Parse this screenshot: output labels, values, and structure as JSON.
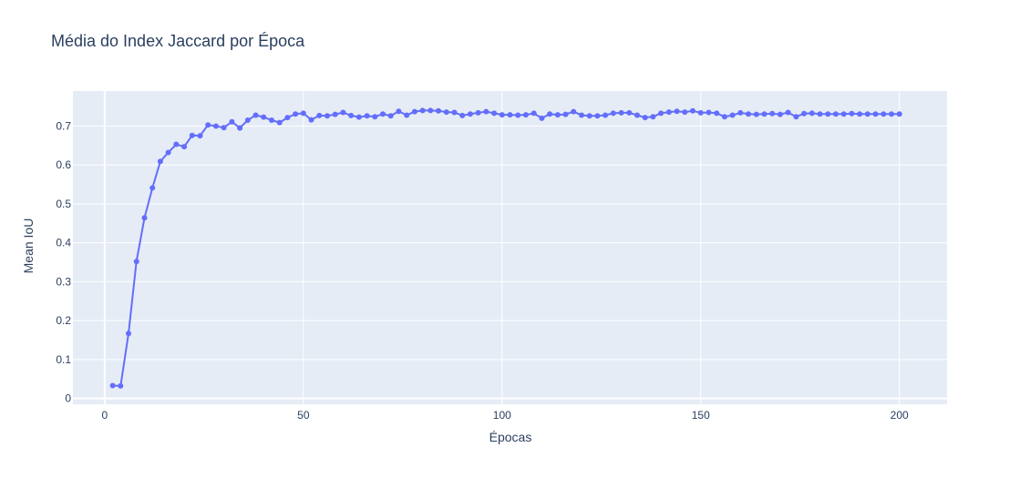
{
  "chart_data": {
    "type": "line",
    "title": "Média do Index Jaccard por Época",
    "xlabel": "Épocas",
    "ylabel": "Mean IoU",
    "xlim": [
      -8,
      212
    ],
    "ylim": [
      -0.015,
      0.79
    ],
    "xticks": [
      0,
      50,
      100,
      150,
      200
    ],
    "yticks": [
      0,
      0.1,
      0.2,
      0.3,
      0.4,
      0.5,
      0.6,
      0.7
    ],
    "grid": true,
    "legend": "none",
    "colors": {
      "line": "#636efa",
      "plot_bg": "#e5ecf6",
      "grid": "#ffffff",
      "text": "#2a3f5f"
    },
    "series": [
      {
        "x": [
          2,
          4,
          6,
          8,
          10,
          12,
          14,
          16,
          18,
          20,
          22,
          24,
          26,
          28,
          30,
          32,
          34,
          36,
          38,
          40,
          42,
          44,
          46,
          48,
          50,
          52,
          54,
          56,
          58,
          60,
          62,
          64,
          66,
          68,
          70,
          72,
          74,
          76,
          78,
          80,
          82,
          84,
          86,
          88,
          90,
          92,
          94,
          96,
          98,
          100,
          102,
          104,
          106,
          108,
          110,
          112,
          114,
          116,
          118,
          120,
          122,
          124,
          126,
          128,
          130,
          132,
          134,
          136,
          138,
          140,
          142,
          144,
          146,
          148,
          150,
          152,
          154,
          156,
          158,
          160,
          162,
          164,
          166,
          168,
          170,
          172,
          174,
          176,
          178,
          180,
          182,
          184,
          186,
          188,
          190,
          192,
          194,
          196,
          198,
          200
        ],
        "y": [
          0.033,
          0.032,
          0.167,
          0.352,
          0.464,
          0.541,
          0.609,
          0.632,
          0.653,
          0.647,
          0.676,
          0.675,
          0.703,
          0.7,
          0.696,
          0.711,
          0.695,
          0.715,
          0.728,
          0.723,
          0.715,
          0.709,
          0.722,
          0.731,
          0.733,
          0.716,
          0.727,
          0.726,
          0.73,
          0.735,
          0.727,
          0.723,
          0.726,
          0.724,
          0.731,
          0.726,
          0.738,
          0.728,
          0.737,
          0.74,
          0.74,
          0.739,
          0.736,
          0.735,
          0.727,
          0.731,
          0.734,
          0.737,
          0.733,
          0.729,
          0.729,
          0.728,
          0.729,
          0.733,
          0.72,
          0.731,
          0.729,
          0.73,
          0.737,
          0.728,
          0.726,
          0.726,
          0.728,
          0.733,
          0.734,
          0.734,
          0.728,
          0.722,
          0.724,
          0.733,
          0.736,
          0.738,
          0.736,
          0.739,
          0.734,
          0.735,
          0.733,
          0.724,
          0.728,
          0.734,
          0.731,
          0.73,
          0.731,
          0.732,
          0.73,
          0.735,
          0.724,
          0.732,
          0.733,
          0.731,
          0.731,
          0.731,
          0.731,
          0.732,
          0.731,
          0.731,
          0.731,
          0.731,
          0.731,
          0.731
        ]
      }
    ]
  }
}
